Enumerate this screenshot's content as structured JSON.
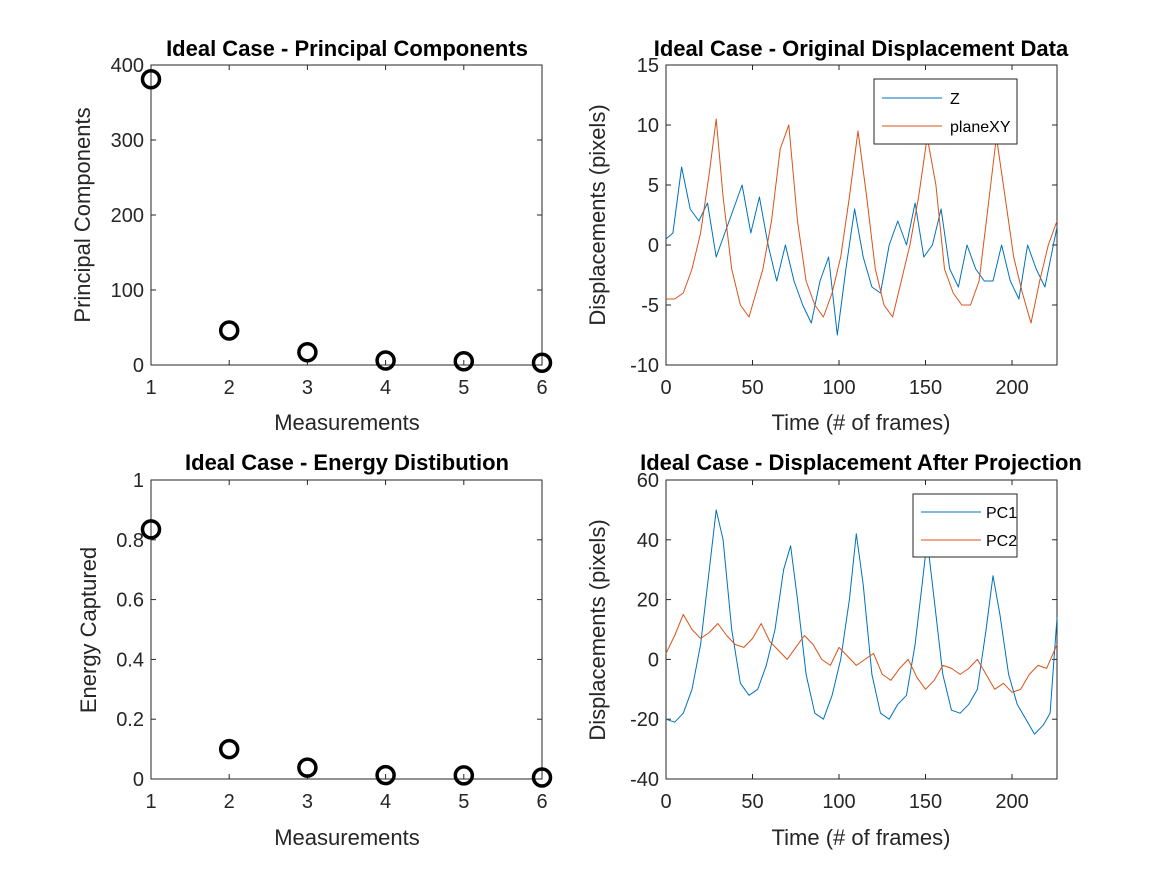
{
  "colors": {
    "series1": "#0072BD",
    "series2": "#D95319",
    "axis": "#262626",
    "marker": "#000000"
  },
  "chart_data": [
    {
      "type": "scatter",
      "title": "Ideal Case - Principal Components",
      "xlabel": "Measurements",
      "ylabel": "Principal Components",
      "xlim": [
        1,
        6
      ],
      "ylim": [
        0,
        400
      ],
      "xticks": [
        1,
        2,
        3,
        4,
        5,
        6
      ],
      "yticks": [
        0,
        100,
        200,
        300,
        400
      ],
      "x": [
        1,
        2,
        3,
        4,
        5,
        6
      ],
      "values": [
        381,
        46,
        17,
        6,
        5,
        3
      ],
      "marker": "circle-open"
    },
    {
      "type": "line",
      "title": "Ideal Case - Original Displacement Data",
      "xlabel": "Time (# of frames)",
      "ylabel": "Displacements (pixels)",
      "xlim": [
        0,
        226
      ],
      "ylim": [
        -10,
        15
      ],
      "xticks": [
        0,
        50,
        100,
        150,
        200
      ],
      "yticks": [
        -10,
        -5,
        0,
        5,
        10,
        15
      ],
      "legend_position": "top-right",
      "series": [
        {
          "name": "Z",
          "x": [
            0,
            4,
            9,
            14,
            19,
            24,
            29,
            34,
            39,
            44,
            49,
            54,
            59,
            64,
            69,
            74,
            79,
            84,
            89,
            94,
            99,
            104,
            109,
            114,
            119,
            124,
            129,
            134,
            139,
            144,
            149,
            154,
            159,
            164,
            169,
            174,
            179,
            184,
            189,
            194,
            199,
            204,
            209,
            214,
            219,
            226
          ],
          "values": [
            0.5,
            1,
            6.5,
            3,
            2,
            3.5,
            -1,
            1,
            3,
            5,
            1,
            4,
            0,
            -3,
            0,
            -3,
            -5,
            -6.5,
            -3,
            -1,
            -7.5,
            -2,
            3,
            -1,
            -3.5,
            -4,
            0,
            2,
            0,
            3.5,
            -1,
            0,
            3,
            -2,
            -3.5,
            0,
            -2,
            -3,
            -3,
            0,
            -3,
            -4.5,
            0,
            -2,
            -3.5,
            1.5
          ]
        },
        {
          "name": "planeXY",
          "x": [
            0,
            5,
            10,
            15,
            20,
            25,
            29,
            33,
            38,
            43,
            48,
            52,
            56,
            61,
            66,
            71,
            76,
            81,
            86,
            91,
            96,
            101,
            106,
            111,
            116,
            121,
            126,
            131,
            136,
            141,
            146,
            151,
            156,
            161,
            166,
            171,
            176,
            181,
            186,
            191,
            196,
            201,
            206,
            211,
            216,
            221,
            226
          ],
          "values": [
            -4.5,
            -4.5,
            -4,
            -2,
            1,
            6,
            10.5,
            4,
            -2,
            -5,
            -6,
            -4,
            -2,
            2,
            8,
            10,
            2,
            -3,
            -5,
            -6,
            -4,
            -1,
            4,
            9.5,
            4,
            -2,
            -5,
            -6,
            -3,
            0,
            4,
            9,
            5,
            -2,
            -4,
            -5,
            -5,
            -3,
            3,
            9,
            4,
            -1,
            -4,
            -6.5,
            -3,
            0,
            2
          ]
        }
      ]
    },
    {
      "type": "scatter",
      "title": "Ideal Case - Energy Distibution",
      "xlabel": "Measurements",
      "ylabel": "Energy Captured",
      "xlim": [
        1,
        6
      ],
      "ylim": [
        0,
        1
      ],
      "xticks": [
        1,
        2,
        3,
        4,
        5,
        6
      ],
      "yticks": [
        0,
        0.2,
        0.4,
        0.6,
        0.8,
        1
      ],
      "x": [
        1,
        2,
        3,
        4,
        5,
        6
      ],
      "values": [
        0.835,
        0.1,
        0.038,
        0.013,
        0.012,
        0.005
      ],
      "marker": "circle-open"
    },
    {
      "type": "line",
      "title": "Ideal Case - Displacement After Projection",
      "xlabel": "Time (# of frames)",
      "ylabel": "Displacements (pixels)",
      "xlim": [
        0,
        226
      ],
      "ylim": [
        -40,
        60
      ],
      "xticks": [
        0,
        50,
        100,
        150,
        200
      ],
      "yticks": [
        -40,
        -20,
        0,
        20,
        40,
        60
      ],
      "legend_position": "top-right",
      "series": [
        {
          "name": "PC1",
          "x": [
            0,
            5,
            10,
            15,
            20,
            25,
            29,
            33,
            38,
            43,
            48,
            53,
            58,
            63,
            68,
            72,
            76,
            81,
            86,
            91,
            96,
            101,
            106,
            110,
            114,
            119,
            124,
            129,
            134,
            139,
            144,
            148,
            151,
            155,
            160,
            165,
            170,
            175,
            180,
            185,
            189,
            193,
            198,
            203,
            208,
            213,
            218,
            222,
            226
          ],
          "values": [
            -20,
            -21,
            -18,
            -10,
            5,
            30,
            50,
            40,
            10,
            -8,
            -12,
            -10,
            -2,
            10,
            30,
            38,
            20,
            -5,
            -18,
            -20,
            -12,
            0,
            20,
            42,
            25,
            -5,
            -18,
            -20,
            -15,
            -12,
            5,
            25,
            40,
            20,
            -5,
            -17,
            -18,
            -15,
            -10,
            10,
            28,
            15,
            -5,
            -15,
            -20,
            -25,
            -22,
            -18,
            14
          ]
        },
        {
          "name": "PC2",
          "x": [
            0,
            5,
            10,
            15,
            20,
            25,
            30,
            35,
            40,
            45,
            50,
            55,
            60,
            65,
            70,
            75,
            80,
            85,
            90,
            95,
            100,
            105,
            110,
            115,
            120,
            125,
            130,
            135,
            140,
            145,
            150,
            155,
            160,
            165,
            170,
            175,
            180,
            185,
            190,
            195,
            200,
            205,
            210,
            215,
            220,
            226
          ],
          "values": [
            2,
            8,
            15,
            10,
            7,
            9,
            12,
            8,
            5,
            4,
            7,
            12,
            6,
            3,
            0,
            4,
            8,
            5,
            0,
            -2,
            4,
            1,
            -2,
            0,
            2,
            -5,
            -7,
            -3,
            0,
            -6,
            -10,
            -7,
            -2,
            -3,
            -5,
            -3,
            0,
            -5,
            -10,
            -8,
            -11,
            -10,
            -5,
            -2,
            -3,
            5
          ]
        }
      ]
    }
  ]
}
